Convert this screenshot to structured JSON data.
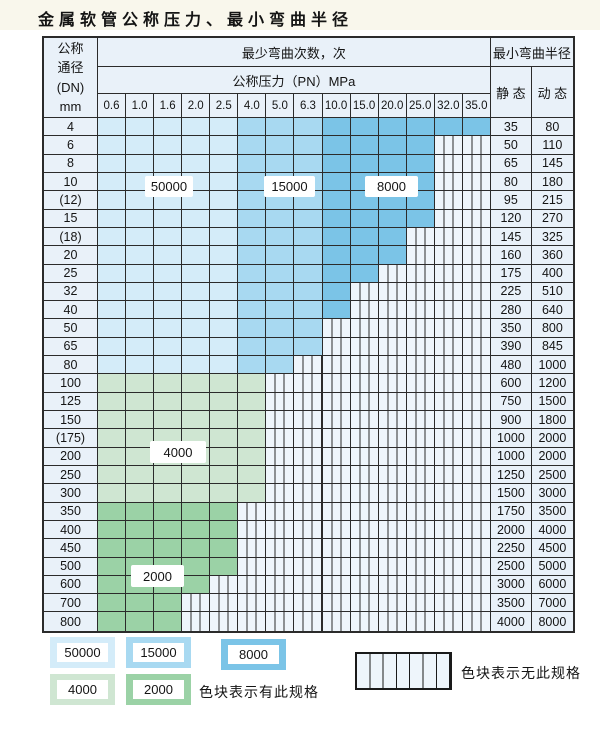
{
  "title": "金属软管公称压力、最小弯曲半径",
  "colors": {
    "c50000": "#d4ecf9",
    "c15000": "#a8d9f1",
    "c8000": "#7bc4e7",
    "c4000": "#cfe6d2",
    "c2000": "#9bd2a6",
    "header_bg": "#e9f1f9",
    "hatch_bg": "#eef5fb",
    "grid": "#2b2b2b"
  },
  "table": {
    "header": {
      "dn_lines": [
        "公称",
        "通径",
        "(DN)",
        "mm"
      ],
      "bend_cycles_label": "最少弯曲次数，次",
      "pressure_label": "公称压力（PN）MPa",
      "radius_label": "最小弯曲半径",
      "static_label": "静 态",
      "dynamic_label": "动 态"
    },
    "pressure_columns": [
      "0.6",
      "1.0",
      "1.6",
      "2.0",
      "2.5",
      "4.0",
      "5.0",
      "6.3",
      "10.0",
      "15.0",
      "20.0",
      "25.0",
      "32.0",
      "35.0"
    ],
    "cycle_regions": {
      "blue_rows_DN_4_to_80": {
        "PN_0.6-2.5": "50000",
        "PN_4.0-6.3": "15000",
        "PN_10.0-35.0": "8000"
      },
      "green_rows_DN_100_to_300": "4000",
      "green_rows_DN_350_to_800": "2000"
    },
    "rows": [
      {
        "dn": "4",
        "static": "35",
        "dynamic": "80",
        "band": "blue",
        "colored_columns": 14
      },
      {
        "dn": "6",
        "static": "50",
        "dynamic": "110",
        "band": "blue",
        "colored_columns": 12
      },
      {
        "dn": "8",
        "static": "65",
        "dynamic": "145",
        "band": "blue",
        "colored_columns": 12
      },
      {
        "dn": "10",
        "static": "80",
        "dynamic": "180",
        "band": "blue",
        "colored_columns": 12
      },
      {
        "dn": "(12)",
        "static": "95",
        "dynamic": "215",
        "band": "blue",
        "colored_columns": 12
      },
      {
        "dn": "15",
        "static": "120",
        "dynamic": "270",
        "band": "blue",
        "colored_columns": 12
      },
      {
        "dn": "(18)",
        "static": "145",
        "dynamic": "325",
        "band": "blue",
        "colored_columns": 11
      },
      {
        "dn": "20",
        "static": "160",
        "dynamic": "360",
        "band": "blue",
        "colored_columns": 11
      },
      {
        "dn": "25",
        "static": "175",
        "dynamic": "400",
        "band": "blue",
        "colored_columns": 10
      },
      {
        "dn": "32",
        "static": "225",
        "dynamic": "510",
        "band": "blue",
        "colored_columns": 9
      },
      {
        "dn": "40",
        "static": "280",
        "dynamic": "640",
        "band": "blue",
        "colored_columns": 9
      },
      {
        "dn": "50",
        "static": "350",
        "dynamic": "800",
        "band": "blue",
        "colored_columns": 8
      },
      {
        "dn": "65",
        "static": "390",
        "dynamic": "845",
        "band": "blue",
        "colored_columns": 8
      },
      {
        "dn": "80",
        "static": "480",
        "dynamic": "1000",
        "band": "blue",
        "colored_columns": 7
      },
      {
        "dn": "100",
        "static": "600",
        "dynamic": "1200",
        "band": "g4000",
        "colored_columns": 6
      },
      {
        "dn": "125",
        "static": "750",
        "dynamic": "1500",
        "band": "g4000",
        "colored_columns": 6
      },
      {
        "dn": "150",
        "static": "900",
        "dynamic": "1800",
        "band": "g4000",
        "colored_columns": 6
      },
      {
        "dn": "(175)",
        "static": "1000",
        "dynamic": "2000",
        "band": "g4000",
        "colored_columns": 6
      },
      {
        "dn": "200",
        "static": "1000",
        "dynamic": "2000",
        "band": "g4000",
        "colored_columns": 6
      },
      {
        "dn": "250",
        "static": "1250",
        "dynamic": "2500",
        "band": "g4000",
        "colored_columns": 6
      },
      {
        "dn": "300",
        "static": "1500",
        "dynamic": "3000",
        "band": "g4000",
        "colored_columns": 6
      },
      {
        "dn": "350",
        "static": "1750",
        "dynamic": "3500",
        "band": "g2000",
        "colored_columns": 5
      },
      {
        "dn": "400",
        "static": "2000",
        "dynamic": "4000",
        "band": "g2000",
        "colored_columns": 5
      },
      {
        "dn": "450",
        "static": "2250",
        "dynamic": "4500",
        "band": "g2000",
        "colored_columns": 5
      },
      {
        "dn": "500",
        "static": "2500",
        "dynamic": "5000",
        "band": "g2000",
        "colored_columns": 5
      },
      {
        "dn": "600",
        "static": "3000",
        "dynamic": "6000",
        "band": "g2000",
        "colored_columns": 4
      },
      {
        "dn": "700",
        "static": "3500",
        "dynamic": "7000",
        "band": "g2000",
        "colored_columns": 3
      },
      {
        "dn": "800",
        "static": "4000",
        "dynamic": "8000",
        "band": "g2000",
        "colored_columns": 3
      }
    ]
  },
  "overlay_labels": [
    {
      "text": "50000"
    },
    {
      "text": "15000"
    },
    {
      "text": "8000"
    },
    {
      "text": "4000"
    },
    {
      "text": "2000"
    }
  ],
  "legend": {
    "swatches": [
      {
        "label": "50000",
        "color_key": "c50000"
      },
      {
        "label": "15000",
        "color_key": "c15000"
      },
      {
        "label": "8000",
        "color_key": "c8000"
      },
      {
        "label": "4000",
        "color_key": "c4000"
      },
      {
        "label": "2000",
        "color_key": "c2000"
      }
    ],
    "has_spec_text": "色块表示有此规格",
    "no_spec_text": "色块表示无此规格"
  }
}
